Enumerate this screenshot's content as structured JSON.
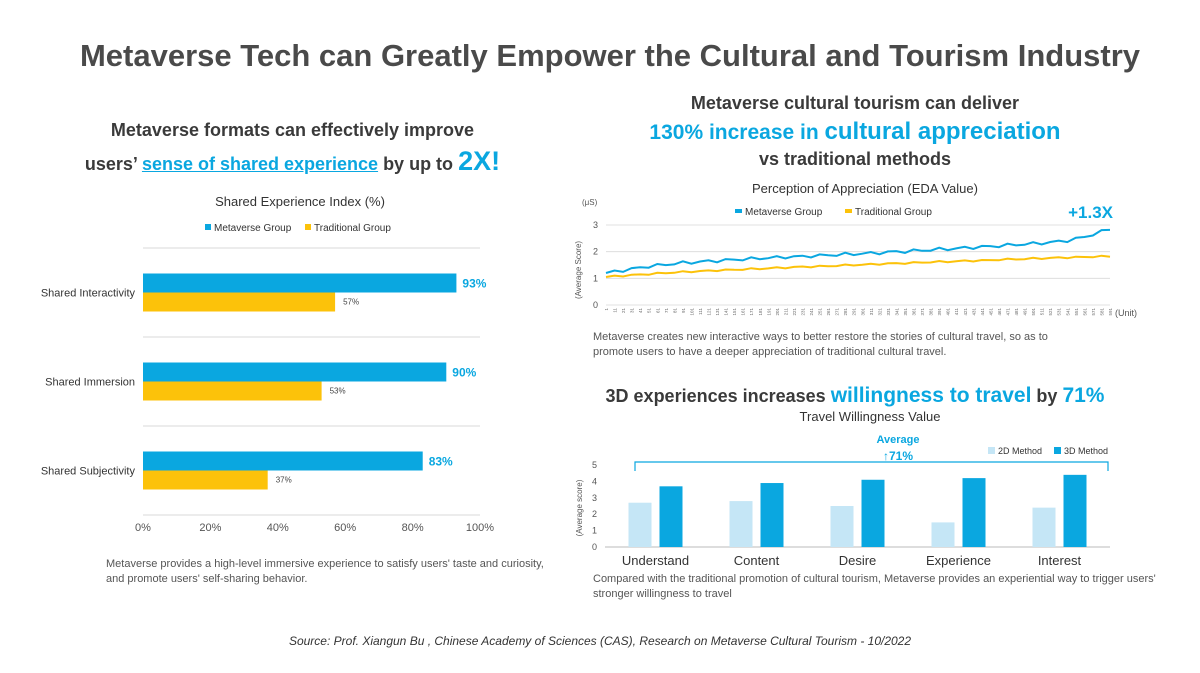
{
  "title": "Metaverse Tech can Greatly Empower the Cultural and Tourism Industry",
  "left_headline": {
    "line1": "Metaverse formats can effectively improve",
    "line2_pre": "users’ ",
    "line2_hl": "sense of shared experience",
    "line2_mid": " by up to ",
    "line2_big": "2X!"
  },
  "right_headline": {
    "line1": "Metaverse cultural tourism can deliver",
    "line2_a": "130% increase in ",
    "line2_b": "cultural appreciation",
    "line3": "vs traditional methods"
  },
  "travel_headline": {
    "pre": "3D experiences increases ",
    "hl": "willingness to travel",
    "mid": " by ",
    "pct": "71%"
  },
  "notes": {
    "left": "Metaverse provides a high-level immersive experience to satisfy users' taste and curiosity, and promote users' self-sharing behavior.",
    "line": "Metaverse creates new interactive ways to better restore the stories of cultural travel, so as to promote users to have a deeper appreciation of traditional cultural travel.",
    "bar2": "Compared with the traditional promotion of cultural tourism, Metaverse provides an experiential way to trigger users' stronger willingness to travel"
  },
  "source": "Source: Prof. Xiangun Bu , Chinese Academy of  Sciences (CAS),  Research on Metaverse Cultural Tourism - 10/2022",
  "colors": {
    "blue": "#0aa7e0",
    "yellow": "#fcc20a",
    "light_blue": "#c5e6f6",
    "grid": "#d9d9d9",
    "text": "#3a3a3a"
  },
  "chart_data": [
    {
      "type": "bar",
      "orientation": "horizontal",
      "title": "Shared Experience Index (%)",
      "categories": [
        "Shared Interactivity",
        "Shared Immersion",
        "Shared Subjectivity"
      ],
      "series": [
        {
          "name": "Metaverse Group",
          "values": [
            93,
            90,
            83
          ],
          "labels": [
            "93%",
            "90%",
            "83%"
          ]
        },
        {
          "name": "Traditional Group",
          "values": [
            57,
            53,
            37
          ],
          "labels": [
            "57%",
            "53%",
            "37%"
          ]
        }
      ],
      "xlim": [
        0,
        100
      ],
      "xticks": [
        "0%",
        "20%",
        "40%",
        "60%",
        "80%",
        "100%"
      ],
      "legend": "top"
    },
    {
      "type": "line",
      "title": "Perception of Appreciation (EDA Value)",
      "ylabel": "(Average Score)",
      "yunit": "(μS)",
      "xunit": "(Unit)",
      "ylim": [
        0,
        3
      ],
      "yticks": [
        "0",
        "1",
        "2",
        "3"
      ],
      "x_start": 1,
      "x_step": 10,
      "x_count": 60,
      "annotation": "+1.3X",
      "series": [
        {
          "name": "Metaverse Group",
          "values": [
            1.2,
            1.25,
            1.3,
            1.35,
            1.4,
            1.45,
            1.48,
            1.52,
            1.55,
            1.58,
            1.6,
            1.62,
            1.64,
            1.66,
            1.68,
            1.7,
            1.72,
            1.73,
            1.75,
            1.77,
            1.78,
            1.8,
            1.81,
            1.82,
            1.84,
            1.85,
            1.87,
            1.88,
            1.9,
            1.91,
            1.93,
            1.94,
            1.96,
            1.98,
            2.0,
            2.01,
            2.03,
            2.05,
            2.07,
            2.09,
            2.1,
            2.12,
            2.14,
            2.16,
            2.18,
            2.2,
            2.22,
            2.24,
            2.26,
            2.28,
            2.3,
            2.32,
            2.35,
            2.38,
            2.42,
            2.48,
            2.55,
            2.65,
            2.75,
            2.85
          ]
        },
        {
          "name": "Traditional Group",
          "values": [
            1.05,
            1.08,
            1.1,
            1.12,
            1.14,
            1.16,
            1.18,
            1.2,
            1.22,
            1.24,
            1.25,
            1.27,
            1.28,
            1.3,
            1.31,
            1.32,
            1.34,
            1.35,
            1.36,
            1.38,
            1.39,
            1.4,
            1.42,
            1.43,
            1.44,
            1.45,
            1.46,
            1.48,
            1.49,
            1.5,
            1.51,
            1.52,
            1.54,
            1.55,
            1.56,
            1.57,
            1.58,
            1.6,
            1.61,
            1.62,
            1.63,
            1.64,
            1.65,
            1.66,
            1.67,
            1.68,
            1.7,
            1.71,
            1.72,
            1.73,
            1.74,
            1.75,
            1.76,
            1.77,
            1.78,
            1.79,
            1.8,
            1.81,
            1.82,
            1.83
          ]
        }
      ],
      "legend": "top"
    },
    {
      "type": "bar",
      "title": "Travel Willingness Value",
      "ylabel": "(Average score)",
      "ylim": [
        0,
        5
      ],
      "yticks": [
        "0",
        "1",
        "2",
        "3",
        "4",
        "5"
      ],
      "categories": [
        "Understand",
        "Content",
        "Desire",
        "Experience",
        "Interest"
      ],
      "series": [
        {
          "name": "2D Method",
          "values": [
            2.7,
            2.8,
            2.5,
            1.5,
            2.4
          ]
        },
        {
          "name": "3D Method",
          "values": [
            3.7,
            3.9,
            4.1,
            4.2,
            4.4
          ]
        }
      ],
      "annotation_label": "Average",
      "annotation_value": "↑71%",
      "legend": "top-right"
    }
  ]
}
